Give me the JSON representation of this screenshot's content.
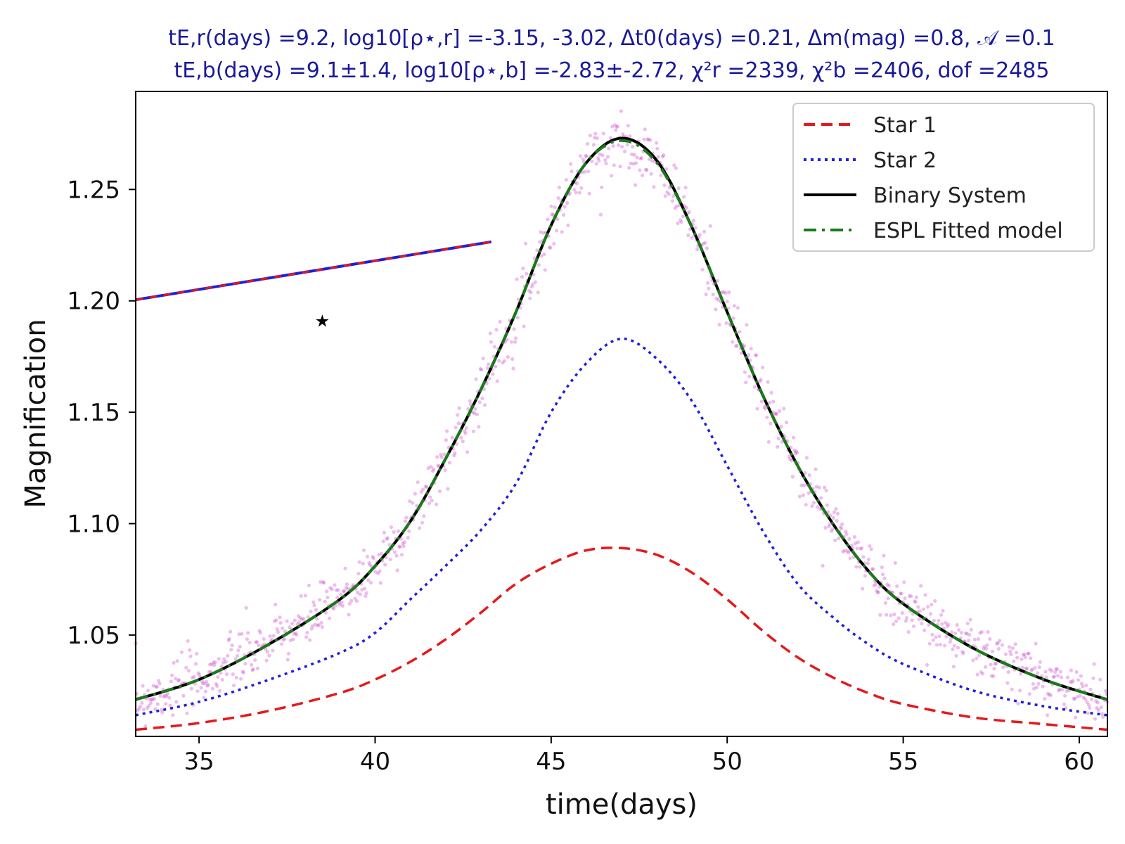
{
  "chart_data": {
    "type": "line",
    "title_lines": [
      "tE,r(days) =9.2,  log10[ρ⋆,r] =-3.15, -3.02,  Δt0(days) =0.21,  Δm(mag) =0.8,  𝒜 =0.1",
      "tE,b(days) =9.1±1.4,  log10[ρ⋆,b] =-2.83±-2.72,  χ²r =2339,  χ²b =2406,  dof =2485"
    ],
    "xlabel": "time(days)",
    "ylabel": "Magnification",
    "xlim": [
      33.2,
      60.8
    ],
    "ylim": [
      1.0045,
      1.294
    ],
    "x_ticks": [
      35,
      40,
      45,
      50,
      55,
      60
    ],
    "x_tick_labels": [
      "35",
      "40",
      "45",
      "50",
      "55",
      "60"
    ],
    "y_ticks": [
      1.05,
      1.1,
      1.15,
      1.2,
      1.25
    ],
    "y_tick_labels": [
      "1.05",
      "1.10",
      "1.15",
      "1.20",
      "1.25"
    ],
    "grid": false,
    "legend_position": "top-right",
    "colors": {
      "star1": "#e31a1c",
      "star2": "#1f1fd8",
      "binary": "#000000",
      "espl": "#1a7a1a",
      "data_points": "#cc44cc",
      "title": "#1a1a99"
    },
    "series": [
      {
        "name": "Star 1",
        "style": "dashed",
        "x": [
          33.2,
          35,
          37,
          39,
          40,
          41,
          42,
          43,
          44,
          45,
          46,
          47,
          48,
          49,
          50,
          51,
          52,
          53,
          54,
          55,
          57,
          59,
          60.8
        ],
        "y": [
          1.0075,
          1.0105,
          1.016,
          1.024,
          1.03,
          1.038,
          1.048,
          1.06,
          1.073,
          1.082,
          1.088,
          1.089,
          1.086,
          1.078,
          1.066,
          1.052,
          1.04,
          1.031,
          1.024,
          1.019,
          1.013,
          1.01,
          1.0075
        ]
      },
      {
        "name": "Star 2",
        "style": "dotted",
        "x": [
          33.2,
          35,
          37,
          39,
          40,
          41,
          42,
          43,
          44,
          45,
          46,
          47,
          48,
          49,
          50,
          51,
          52,
          53,
          54,
          55,
          57,
          59,
          60.8
        ],
        "y": [
          1.014,
          1.02,
          1.03,
          1.042,
          1.051,
          1.066,
          1.081,
          1.097,
          1.118,
          1.15,
          1.172,
          1.183,
          1.174,
          1.155,
          1.126,
          1.097,
          1.073,
          1.058,
          1.046,
          1.037,
          1.025,
          1.018,
          1.014
        ]
      },
      {
        "name": "Binary System",
        "style": "solid",
        "x": [
          33.2,
          35,
          37,
          39,
          40,
          41,
          42,
          43,
          44,
          45,
          46,
          47,
          48,
          49,
          50,
          51,
          52,
          53,
          54,
          55,
          57,
          59,
          60.8
        ],
        "y": [
          1.021,
          1.03,
          1.046,
          1.066,
          1.081,
          1.101,
          1.129,
          1.16,
          1.195,
          1.234,
          1.262,
          1.273,
          1.263,
          1.233,
          1.195,
          1.158,
          1.126,
          1.1,
          1.079,
          1.064,
          1.044,
          1.03,
          1.021
        ]
      },
      {
        "name": "ESPL Fitted model",
        "style": "dashdot",
        "x": [
          33.2,
          35,
          37,
          39,
          40,
          41,
          42,
          43,
          44,
          45,
          46,
          47,
          48,
          49,
          50,
          51,
          52,
          53,
          54,
          55,
          57,
          59,
          60.8
        ],
        "y": [
          1.021,
          1.03,
          1.046,
          1.066,
          1.081,
          1.101,
          1.129,
          1.16,
          1.195,
          1.234,
          1.262,
          1.272,
          1.262,
          1.233,
          1.195,
          1.158,
          1.126,
          1.1,
          1.079,
          1.064,
          1.044,
          1.03,
          1.021
        ]
      },
      {
        "style": "solid",
        "x": [
          33.2,
          43.3
        ],
        "y": [
          1.2005,
          1.2265
        ]
      }
    ],
    "annotations": [
      {
        "marker": "star",
        "x": 38.5,
        "y": 1.191
      }
    ]
  }
}
